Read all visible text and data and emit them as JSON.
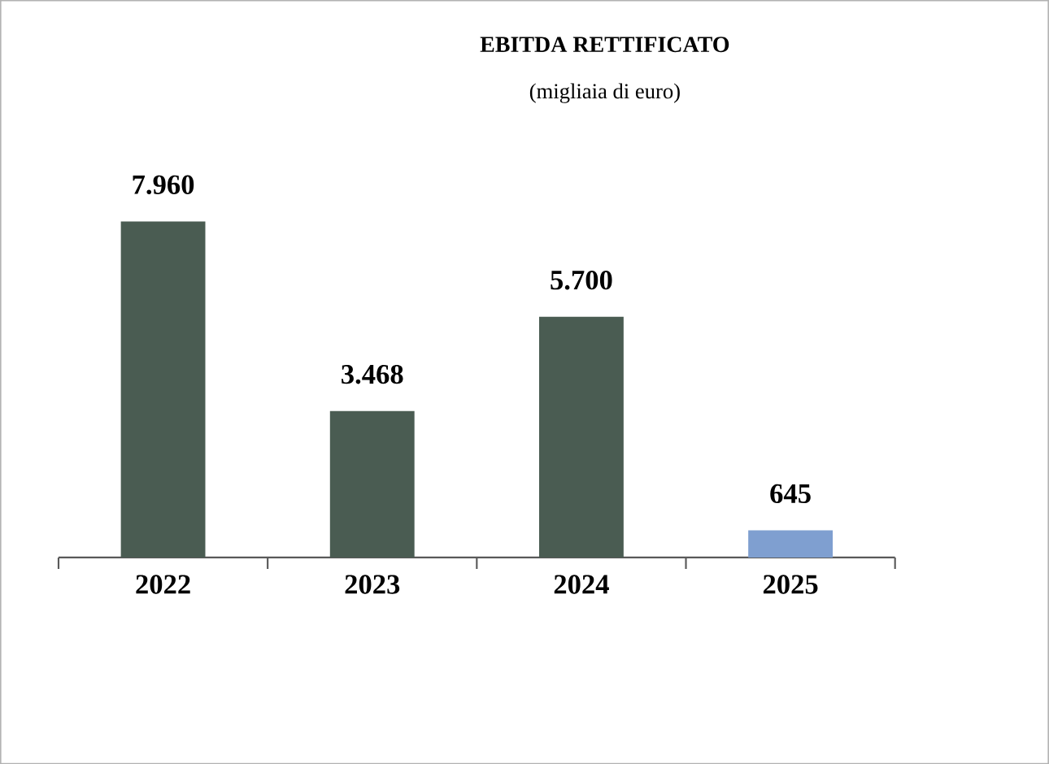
{
  "chart_data": {
    "type": "bar",
    "title": "EBITDA RETTIFICATO",
    "subtitle": "(migliaia di euro)",
    "categories": [
      "2022",
      "2023",
      "2024",
      "2025"
    ],
    "values": [
      7960,
      3468,
      5700,
      645
    ],
    "value_labels": [
      "7.960",
      "3.468",
      "5.700",
      "645"
    ],
    "colors": [
      "#4a5c52",
      "#4a5c52",
      "#4a5c52",
      "#7f9fd0"
    ]
  }
}
